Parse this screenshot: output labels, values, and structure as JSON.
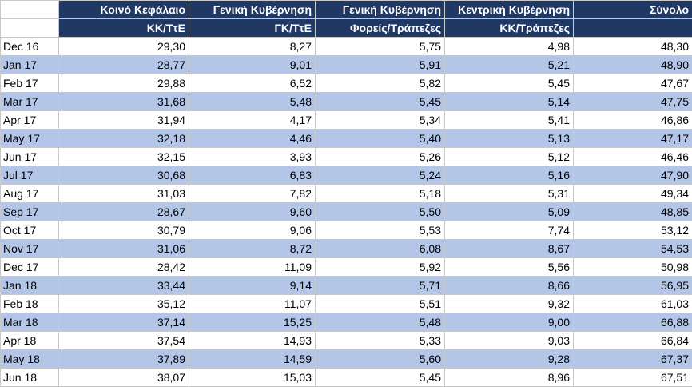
{
  "header_row1": [
    "Κοινό Κεφάλαιο",
    "Γενική Κυβέρνηση",
    "Γενική Κυβέρνηση",
    "Κεντρική Κυβέρνηση",
    "Σύνολο"
  ],
  "header_row2": [
    "ΚΚ/ΤτΕ",
    "ΓΚ/ΤτΕ",
    "Φορείς/Τράπεζες",
    "ΚΚ/Τράπεζες",
    ""
  ],
  "rows": [
    {
      "label": "Dec 16",
      "values": [
        "29,30",
        "8,27",
        "5,75",
        "4,98",
        "48,30"
      ]
    },
    {
      "label": "Jan 17",
      "values": [
        "28,77",
        "9,01",
        "5,91",
        "5,21",
        "48,90"
      ]
    },
    {
      "label": "Feb 17",
      "values": [
        "29,88",
        "6,52",
        "5,82",
        "5,45",
        "47,67"
      ]
    },
    {
      "label": "Mar 17",
      "values": [
        "31,68",
        "5,48",
        "5,45",
        "5,14",
        "47,75"
      ]
    },
    {
      "label": "Apr 17",
      "values": [
        "31,94",
        "4,17",
        "5,34",
        "5,41",
        "46,86"
      ]
    },
    {
      "label": "May 17",
      "values": [
        "32,18",
        "4,46",
        "5,40",
        "5,13",
        "47,17"
      ]
    },
    {
      "label": "Jun 17",
      "values": [
        "32,15",
        "3,93",
        "5,26",
        "5,12",
        "46,46"
      ]
    },
    {
      "label": "Jul 17",
      "values": [
        "30,68",
        "6,83",
        "5,24",
        "5,16",
        "47,90"
      ]
    },
    {
      "label": "Aug 17",
      "values": [
        "31,03",
        "7,82",
        "5,18",
        "5,31",
        "49,34"
      ]
    },
    {
      "label": "Sep 17",
      "values": [
        "28,67",
        "9,60",
        "5,50",
        "5,09",
        "48,85"
      ]
    },
    {
      "label": "Oct 17",
      "values": [
        "30,79",
        "9,06",
        "5,53",
        "7,74",
        "53,12"
      ]
    },
    {
      "label": "Nov 17",
      "values": [
        "31,06",
        "8,72",
        "6,08",
        "8,67",
        "54,53"
      ]
    },
    {
      "label": "Dec 17",
      "values": [
        "28,42",
        "11,09",
        "5,92",
        "5,56",
        "50,98"
      ]
    },
    {
      "label": "Jan 18",
      "values": [
        "33,44",
        "9,14",
        "5,71",
        "8,66",
        "56,95"
      ]
    },
    {
      "label": "Feb 18",
      "values": [
        "35,12",
        "11,07",
        "5,51",
        "9,32",
        "61,03"
      ]
    },
    {
      "label": "Mar 18",
      "values": [
        "37,14",
        "15,25",
        "5,48",
        "9,00",
        "66,88"
      ]
    },
    {
      "label": "Apr 18",
      "values": [
        "37,54",
        "14,93",
        "5,33",
        "9,03",
        "66,84"
      ]
    },
    {
      "label": "May 18",
      "values": [
        "37,89",
        "14,59",
        "5,60",
        "9,28",
        "67,37"
      ]
    },
    {
      "label": "Jun 18",
      "values": [
        "38,07",
        "15,03",
        "5,45",
        "8,96",
        "67,51"
      ]
    }
  ],
  "colors": {
    "header_bg": "#1f3864",
    "header_text": "#ffffff",
    "band_row": "#b4c6e7",
    "plain_row": "#ffffff",
    "grid_line": "#c9c9c9"
  }
}
